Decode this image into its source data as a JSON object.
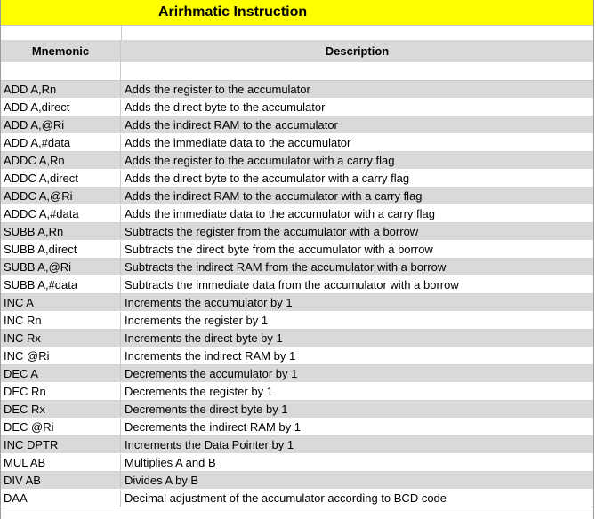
{
  "sheet": {
    "title": "Arirhmatic Instruction",
    "columns": {
      "mnemonic": "Mnemonic",
      "description": "Description"
    },
    "rows": [
      {
        "mnemonic": "ADD A,Rn",
        "description": "Adds the register to the accumulator"
      },
      {
        "mnemonic": "ADD A,direct",
        "description": "Adds the direct byte to the accumulator"
      },
      {
        "mnemonic": "ADD A,@Ri",
        "description": "Adds the indirect RAM to the accumulator"
      },
      {
        "mnemonic": "ADD A,#data",
        "description": "Adds the immediate data to the accumulator"
      },
      {
        "mnemonic": "ADDC A,Rn",
        "description": "Adds the register to the accumulator with a carry flag"
      },
      {
        "mnemonic": "ADDC A,direct",
        "description": "Adds the direct byte to the accumulator with a carry flag"
      },
      {
        "mnemonic": "ADDC A,@Ri",
        "description": "Adds the indirect RAM to the accumulator with a carry flag"
      },
      {
        "mnemonic": "ADDC A,#data",
        "description": "Adds the immediate data to the accumulator with a carry flag"
      },
      {
        "mnemonic": "SUBB A,Rn",
        "description": "Subtracts the register from the accumulator with a borrow"
      },
      {
        "mnemonic": "SUBB A,direct",
        "description": "Subtracts the direct byte from the accumulator with a borrow"
      },
      {
        "mnemonic": "SUBB A,@Ri",
        "description": "Subtracts the indirect RAM from the accumulator with a borrow"
      },
      {
        "mnemonic": "SUBB A,#data",
        "description": "Subtracts the immediate data from the accumulator with a borrow"
      },
      {
        "mnemonic": "INC A",
        "description": "Increments the accumulator by 1"
      },
      {
        "mnemonic": "INC Rn",
        "description": "Increments the register by 1"
      },
      {
        "mnemonic": "INC Rx",
        "description": "Increments the direct byte by 1"
      },
      {
        "mnemonic": "INC @Ri",
        "description": "Increments the indirect RAM by 1"
      },
      {
        "mnemonic": "DEC A",
        "description": "Decrements the accumulator by 1"
      },
      {
        "mnemonic": "DEC Rn",
        "description": "Decrements the register by 1"
      },
      {
        "mnemonic": "DEC Rx",
        "description": "Decrements the direct byte by 1"
      },
      {
        "mnemonic": "DEC @Ri",
        "description": "Decrements the indirect RAM by 1"
      },
      {
        "mnemonic": "INC DPTR",
        "description": "Increments the Data Pointer by 1"
      },
      {
        "mnemonic": "MUL AB",
        "description": "Multiplies A and B"
      },
      {
        "mnemonic": "DIV AB",
        "description": "Divides A by B"
      },
      {
        "mnemonic": "DAA",
        "description": "Decimal adjustment of the accumulator according to BCD code"
      }
    ]
  },
  "colors": {
    "title_bg": "#ffff00",
    "band": "#d9d9d9"
  }
}
